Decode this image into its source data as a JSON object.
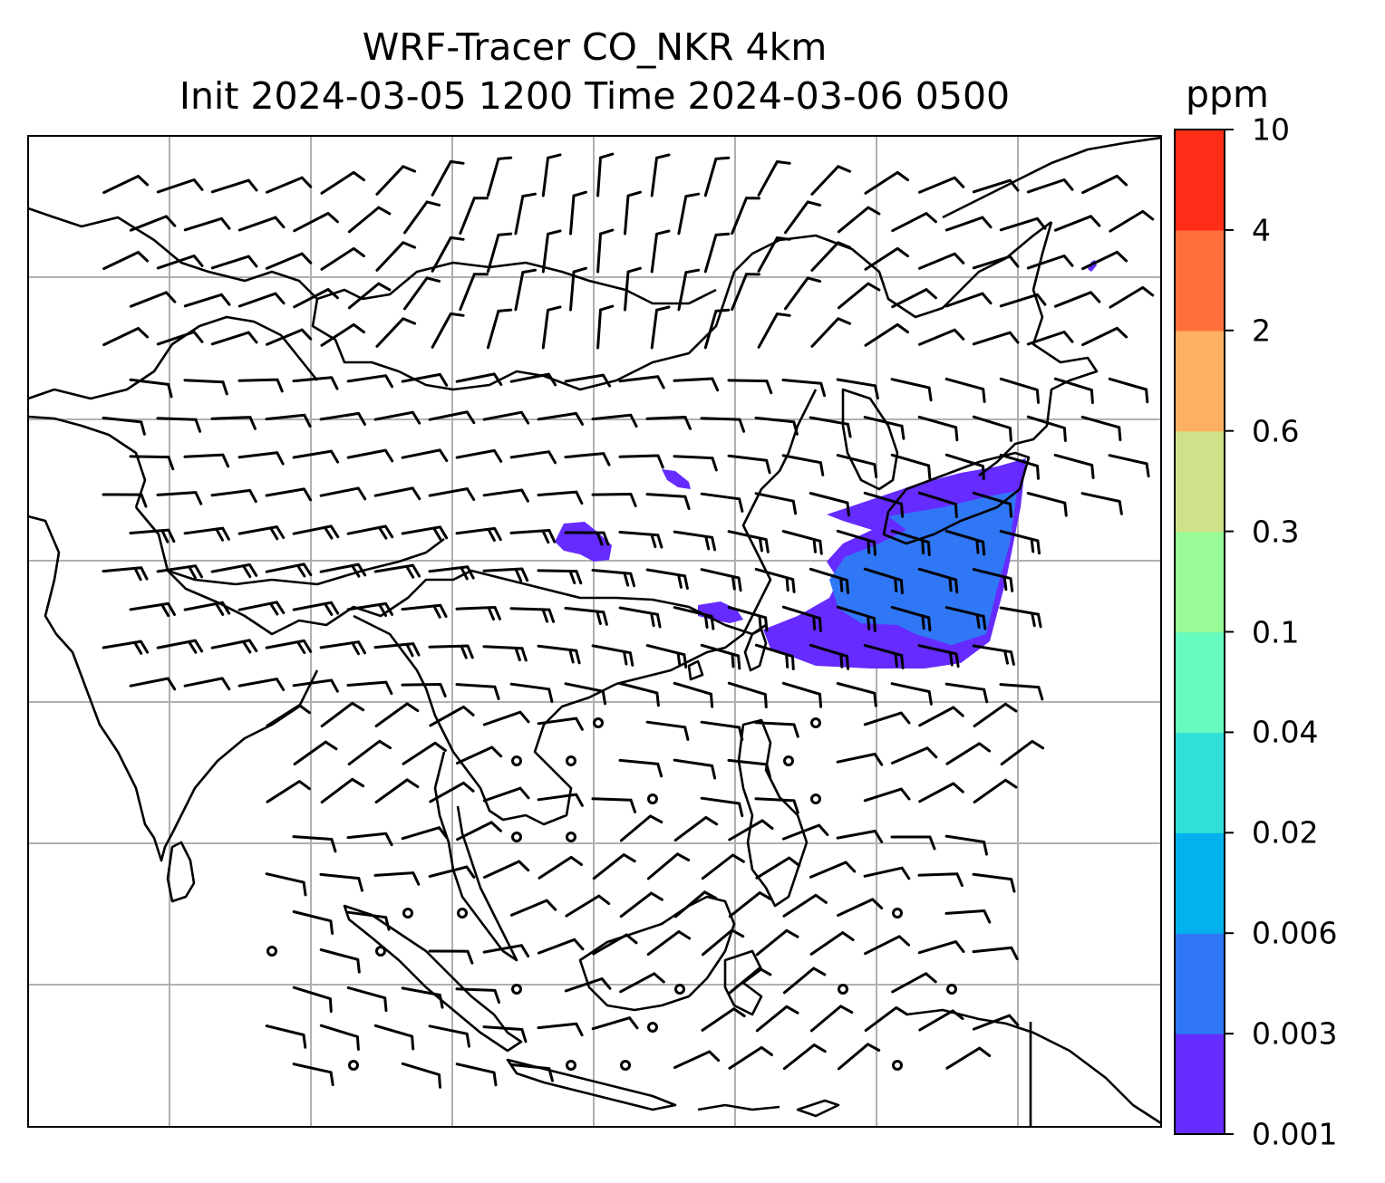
{
  "title": {
    "line1": "WRF-Tracer CO_NKR 4km",
    "line2": "Init 2024-03-05 1200 Time 2024-03-06 0500"
  },
  "colorbar": {
    "unit": "ppm",
    "levels": [
      "0.001",
      "0.003",
      "0.006",
      "0.02",
      "0.04",
      "0.1",
      "0.3",
      "0.6",
      "2",
      "4",
      "10"
    ],
    "colors": [
      "#652bff",
      "#3077f6",
      "#03b2ec",
      "#30dfd8",
      "#68fbbf",
      "#98fb98",
      "#cfe289",
      "#feb062",
      "#fe6f3c",
      "#ff2d17"
    ]
  },
  "map": {
    "layers": [
      "coastlines",
      "country-borders",
      "gridlines",
      "wind-barbs",
      "tracer-concentration"
    ],
    "colors": {
      "land_lines": "#000000",
      "grid": "#b0b0b0",
      "barbs": "#000000"
    }
  }
}
